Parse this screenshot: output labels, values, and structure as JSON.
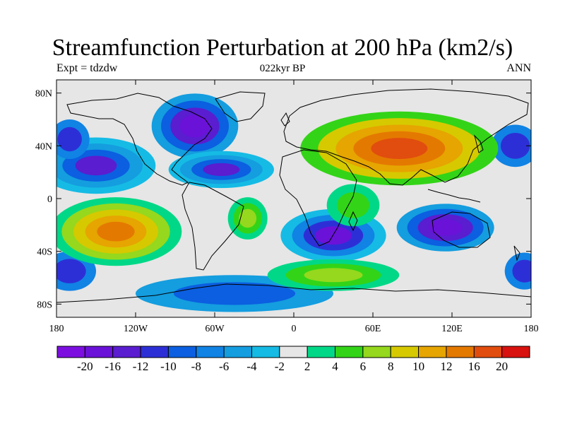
{
  "title": "Streamfunction Perturbation at 200 hPa (km2/s)",
  "left_string": "Expt = tdzdw",
  "center_string": "022kyr BP",
  "right_string": "ANN",
  "y_ticks": [
    "80N",
    "40N",
    "0",
    "40S",
    "80S"
  ],
  "x_ticks": [
    "180",
    "120W",
    "60W",
    "0",
    "60E",
    "120E",
    "180"
  ],
  "colorbar": {
    "colors": [
      "#7c0fe0",
      "#6a12d8",
      "#5a1dd0",
      "#2d2fd6",
      "#0b5fe0",
      "#1083e4",
      "#149ddf",
      "#15bbe4",
      "#e6e6e6",
      "#00d887",
      "#33d417",
      "#95d81d",
      "#d6c900",
      "#e6a500",
      "#e47900",
      "#e14d0e",
      "#d7120f"
    ],
    "labels": [
      "-20",
      "-16",
      "-12",
      "-10",
      "-8",
      "-6",
      "-4",
      "-2",
      "2",
      "4",
      "6",
      "8",
      "10",
      "12",
      "16",
      "20"
    ]
  },
  "map_data": {
    "projection": "cylindrical-equidistant",
    "lon_range": [
      -180,
      180
    ],
    "lat_range": [
      -90,
      90
    ],
    "background_color": "#e6e6e6",
    "features": [
      {
        "name": "north-america-low",
        "lon": -75,
        "lat": 55,
        "rlon": 40,
        "rlat": 30,
        "levels": [
          8,
          6,
          4,
          2,
          1
        ]
      },
      {
        "name": "north-atlantic-low",
        "lon": -150,
        "lat": 25,
        "rlon": 55,
        "rlat": 26,
        "levels": [
          8,
          7,
          6,
          4,
          2
        ]
      },
      {
        "name": "subtropical-atlantic-low",
        "lon": -55,
        "lat": 22,
        "rlon": 40,
        "rlat": 14,
        "levels": [
          7,
          6,
          4,
          2
        ]
      },
      {
        "name": "north-pacific-low",
        "lon": -170,
        "lat": 45,
        "rlon": 15,
        "rlat": 15,
        "levels": [
          5,
          3
        ]
      },
      {
        "name": "far-east-low",
        "lon": 168,
        "lat": 40,
        "rlon": 18,
        "rlat": 16,
        "levels": [
          5,
          3
        ]
      },
      {
        "name": "south-africa-low",
        "lon": 30,
        "lat": -28,
        "rlon": 40,
        "rlat": 20,
        "levels": [
          7,
          5,
          3,
          1
        ]
      },
      {
        "name": "australia-low",
        "lon": 115,
        "lat": -22,
        "rlon": 45,
        "rlat": 22,
        "levels": [
          8,
          6,
          4,
          2,
          1
        ]
      },
      {
        "name": "south-pacific-low",
        "lon": -170,
        "lat": -55,
        "rlon": 20,
        "rlat": 15,
        "levels": [
          5,
          3
        ]
      },
      {
        "name": "far-south-pacific-low",
        "lon": 175,
        "lat": -55,
        "rlon": 15,
        "rlat": 14,
        "levels": [
          5,
          3
        ]
      },
      {
        "name": "antarctic-low",
        "lon": -45,
        "lat": -72,
        "rlon": 75,
        "rlat": 14,
        "levels": [
          6,
          4
        ]
      },
      {
        "name": "asia-high",
        "lon": 80,
        "lat": 38,
        "rlon": 75,
        "rlat": 28,
        "levels": [
          10,
          12,
          13,
          14,
          15
        ]
      },
      {
        "name": "south-pacific-high",
        "lon": -135,
        "lat": -25,
        "rlon": 50,
        "rlat": 26,
        "levels": [
          9,
          11,
          12,
          13,
          14
        ]
      },
      {
        "name": "south-america-high",
        "lon": -35,
        "lat": -15,
        "rlon": 15,
        "rlat": 16,
        "levels": [
          9,
          10,
          11
        ]
      },
      {
        "name": "southern-ocean-high",
        "lon": 30,
        "lat": -58,
        "rlon": 50,
        "rlat": 12,
        "levels": [
          9,
          10,
          11
        ]
      },
      {
        "name": "east-africa-high",
        "lon": 45,
        "lat": -5,
        "rlon": 20,
        "rlat": 16,
        "levels": [
          9,
          10
        ]
      }
    ]
  }
}
